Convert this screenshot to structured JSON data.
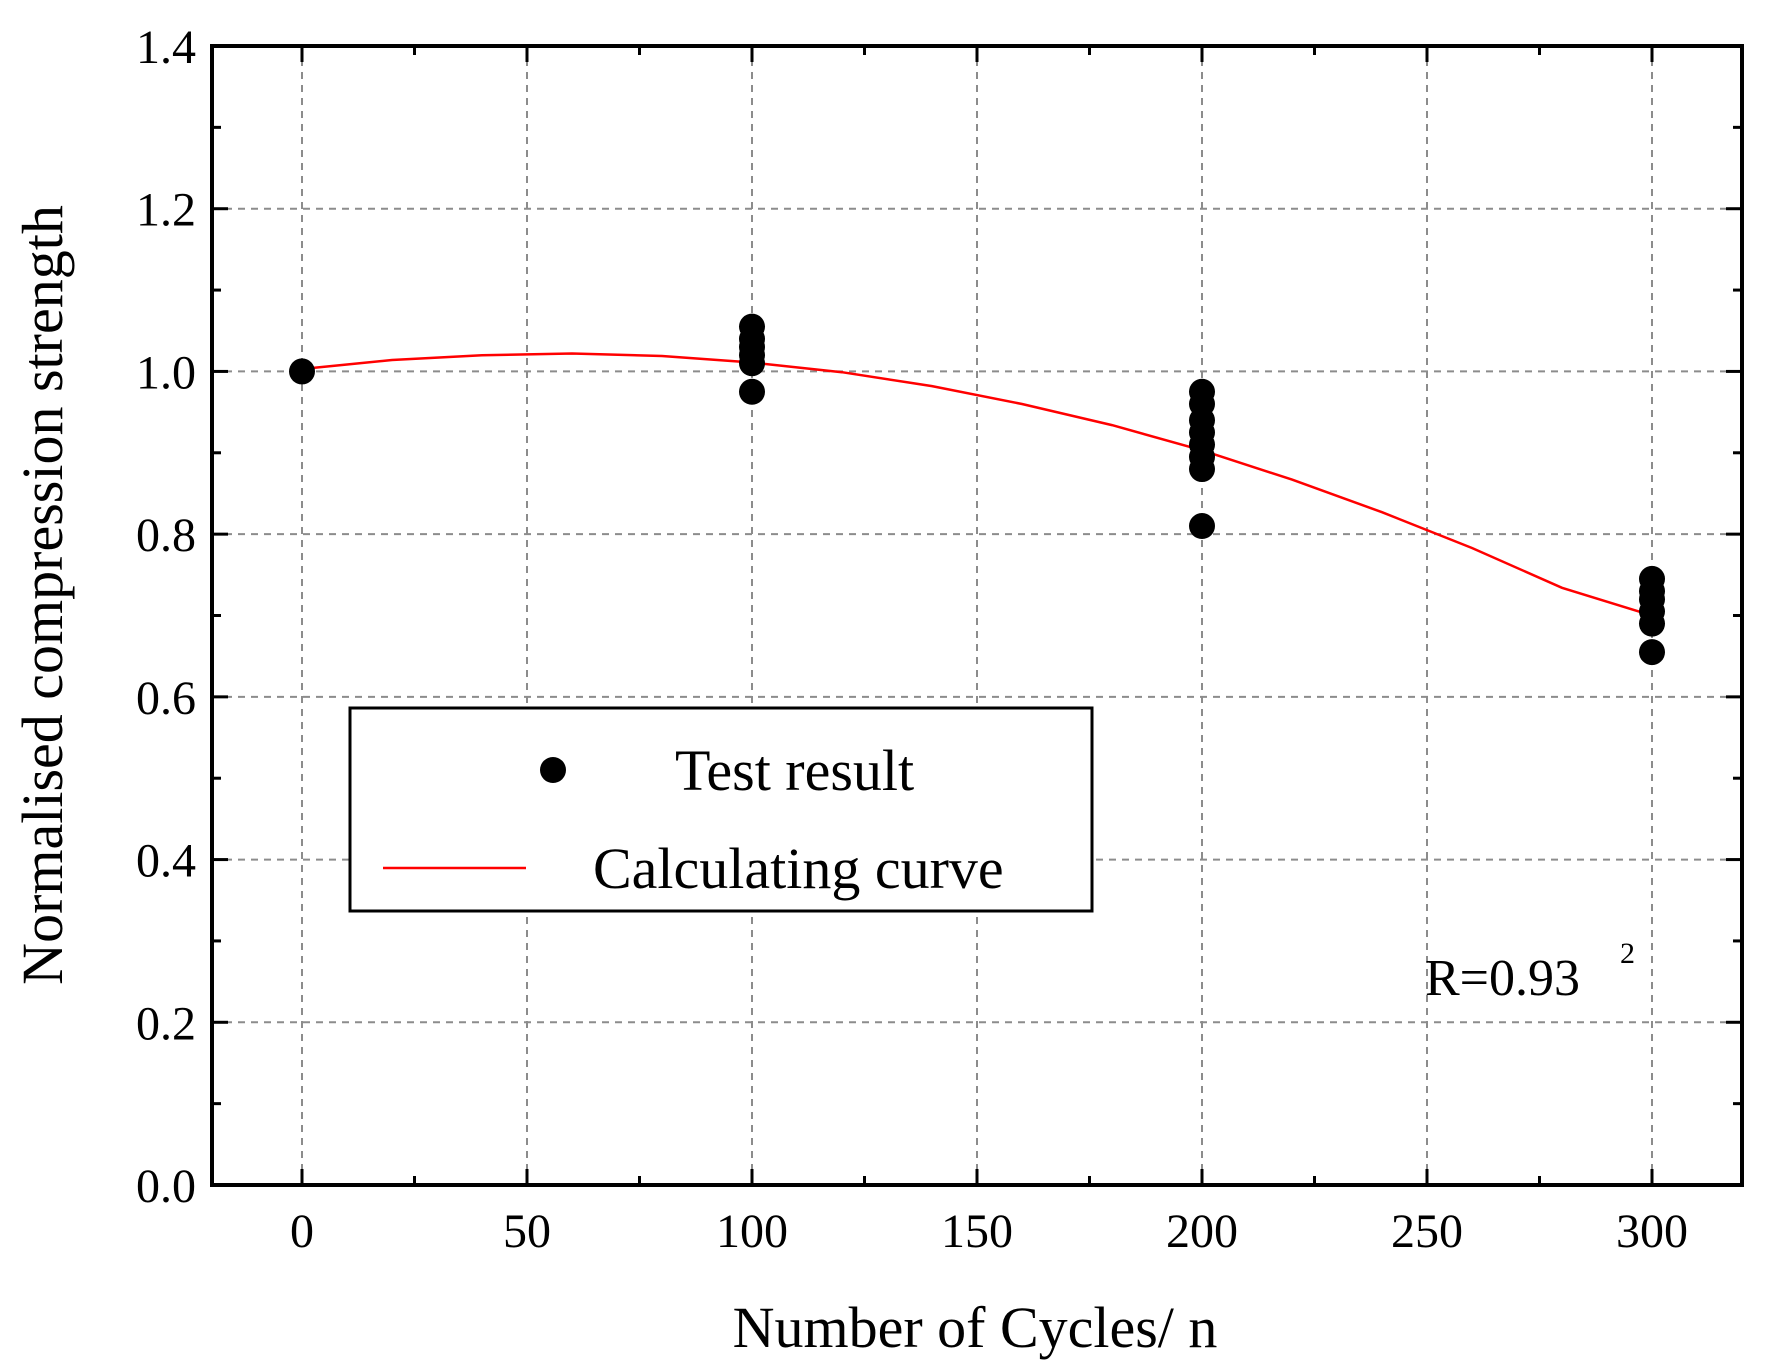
{
  "chart_data": {
    "type": "scatter",
    "title": "",
    "xlabel": "Number of Cycles/ n",
    "ylabel": "Normalised compression strength",
    "xlim": [
      -20,
      320
    ],
    "ylim": [
      0.0,
      1.4
    ],
    "xticks": [
      0,
      50,
      100,
      150,
      200,
      250,
      300
    ],
    "yticks": [
      0.0,
      0.2,
      0.4,
      0.6,
      0.8,
      1.0,
      1.2,
      1.4
    ],
    "xtick_labels": [
      "0",
      "50",
      "100",
      "150",
      "200",
      "250",
      "300"
    ],
    "ytick_labels": [
      "0.0",
      "0.2",
      "0.4",
      "0.6",
      "0.8",
      "1.0",
      "1.2",
      "1.4"
    ],
    "grid": true,
    "legend_position": "center-left",
    "series": [
      {
        "name": "Test result",
        "kind": "scatter",
        "color": "#000000",
        "points": [
          [
            0,
            1.0
          ],
          [
            100,
            1.055
          ],
          [
            100,
            1.04
          ],
          [
            100,
            1.03
          ],
          [
            100,
            1.02
          ],
          [
            100,
            1.01
          ],
          [
            100,
            0.975
          ],
          [
            200,
            0.975
          ],
          [
            200,
            0.96
          ],
          [
            200,
            0.94
          ],
          [
            200,
            0.925
          ],
          [
            200,
            0.91
          ],
          [
            200,
            0.895
          ],
          [
            200,
            0.88
          ],
          [
            200,
            0.81
          ],
          [
            300,
            0.745
          ],
          [
            300,
            0.73
          ],
          [
            300,
            0.72
          ],
          [
            300,
            0.705
          ],
          [
            300,
            0.69
          ],
          [
            300,
            0.655
          ]
        ]
      },
      {
        "name": "Calculating curve",
        "kind": "line",
        "color": "#ff0000",
        "x": [
          0,
          20,
          40,
          60,
          80,
          100,
          120,
          140,
          160,
          180,
          200,
          220,
          240,
          260,
          280,
          300
        ],
        "y": [
          1.003,
          1.014,
          1.02,
          1.022,
          1.019,
          1.011,
          0.999,
          0.982,
          0.96,
          0.934,
          0.903,
          0.867,
          0.827,
          0.783,
          0.734,
          0.7
        ]
      }
    ],
    "annotation": {
      "base": "R=0.93",
      "superscript": "2"
    }
  }
}
